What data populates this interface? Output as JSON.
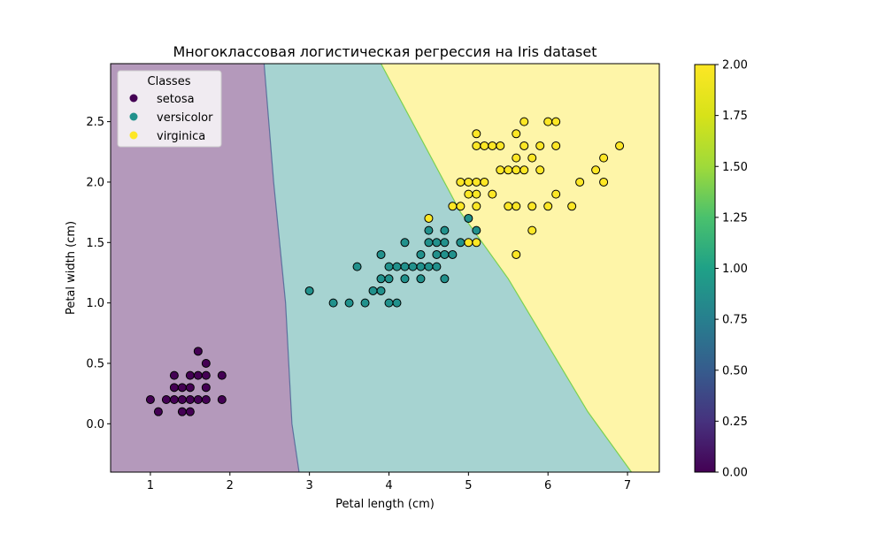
{
  "chart_data": {
    "type": "scatter",
    "title": "Многоклассовая логистическая регрессия на Iris dataset",
    "xlabel": "Petal length (cm)",
    "ylabel": "Petal width (cm)",
    "xlim": [
      0.5,
      7.4
    ],
    "ylim": [
      -0.4,
      2.98
    ],
    "x_ticks": [
      "1",
      "2",
      "3",
      "4",
      "5",
      "6",
      "7"
    ],
    "y_ticks": [
      "0.0",
      "0.5",
      "1.0",
      "1.5",
      "2.0",
      "2.5"
    ],
    "grid": false,
    "legend": {
      "title": "Classes",
      "placement": "top-left",
      "entries": [
        "setosa",
        "versicolor",
        "virginica"
      ]
    },
    "colorbar": {
      "range": [
        0,
        2
      ],
      "ticks": [
        "0.00",
        "0.25",
        "0.50",
        "0.75",
        "1.00",
        "1.25",
        "1.50",
        "1.75",
        "2.00"
      ]
    },
    "colors": {
      "setosa": "#440154",
      "versicolor": "#21918c",
      "virginica": "#fde725"
    },
    "decision_regions": [
      {
        "class": "setosa",
        "color": "#440154"
      },
      {
        "class": "versicolor",
        "color": "#21918c"
      },
      {
        "class": "virginica",
        "color": "#fde725"
      }
    ],
    "boundaries": {
      "setosa_versicolor": [
        [
          2.43,
          2.98
        ],
        [
          2.55,
          2.0
        ],
        [
          2.7,
          1.0
        ],
        [
          2.78,
          0.0
        ],
        [
          2.87,
          -0.4
        ]
      ],
      "versicolor_virginica": [
        [
          3.9,
          2.98
        ],
        [
          4.9,
          1.75
        ],
        [
          5.5,
          1.2
        ],
        [
          6.5,
          0.1
        ],
        [
          7.05,
          -0.4
        ]
      ]
    },
    "series": [
      {
        "name": "setosa",
        "points": [
          [
            1.0,
            0.2
          ],
          [
            1.1,
            0.1
          ],
          [
            1.2,
            0.2
          ],
          [
            1.3,
            0.2
          ],
          [
            1.3,
            0.3
          ],
          [
            1.3,
            0.4
          ],
          [
            1.4,
            0.1
          ],
          [
            1.4,
            0.2
          ],
          [
            1.4,
            0.3
          ],
          [
            1.5,
            0.1
          ],
          [
            1.5,
            0.2
          ],
          [
            1.5,
            0.3
          ],
          [
            1.5,
            0.4
          ],
          [
            1.6,
            0.2
          ],
          [
            1.6,
            0.4
          ],
          [
            1.6,
            0.6
          ],
          [
            1.7,
            0.2
          ],
          [
            1.7,
            0.3
          ],
          [
            1.7,
            0.4
          ],
          [
            1.7,
            0.5
          ],
          [
            1.9,
            0.2
          ],
          [
            1.9,
            0.4
          ]
        ]
      },
      {
        "name": "versicolor",
        "points": [
          [
            3.0,
            1.1
          ],
          [
            3.3,
            1.0
          ],
          [
            3.5,
            1.0
          ],
          [
            3.6,
            1.3
          ],
          [
            3.7,
            1.0
          ],
          [
            3.8,
            1.1
          ],
          [
            3.9,
            1.1
          ],
          [
            3.9,
            1.2
          ],
          [
            3.9,
            1.4
          ],
          [
            4.0,
            1.0
          ],
          [
            4.0,
            1.2
          ],
          [
            4.0,
            1.3
          ],
          [
            4.1,
            1.0
          ],
          [
            4.1,
            1.3
          ],
          [
            4.2,
            1.2
          ],
          [
            4.2,
            1.3
          ],
          [
            4.2,
            1.5
          ],
          [
            4.3,
            1.3
          ],
          [
            4.4,
            1.2
          ],
          [
            4.4,
            1.3
          ],
          [
            4.4,
            1.4
          ],
          [
            4.5,
            1.3
          ],
          [
            4.5,
            1.5
          ],
          [
            4.5,
            1.6
          ],
          [
            4.6,
            1.3
          ],
          [
            4.6,
            1.4
          ],
          [
            4.6,
            1.5
          ],
          [
            4.7,
            1.2
          ],
          [
            4.7,
            1.4
          ],
          [
            4.7,
            1.5
          ],
          [
            4.7,
            1.6
          ],
          [
            4.8,
            1.4
          ],
          [
            4.9,
            1.5
          ],
          [
            5.0,
            1.7
          ],
          [
            5.1,
            1.6
          ]
        ]
      },
      {
        "name": "virginica",
        "points": [
          [
            4.5,
            1.7
          ],
          [
            4.8,
            1.8
          ],
          [
            4.9,
            1.8
          ],
          [
            4.9,
            2.0
          ],
          [
            5.0,
            1.5
          ],
          [
            5.0,
            1.9
          ],
          [
            5.0,
            2.0
          ],
          [
            5.1,
            1.5
          ],
          [
            5.1,
            1.8
          ],
          [
            5.1,
            1.9
          ],
          [
            5.1,
            2.0
          ],
          [
            5.1,
            2.3
          ],
          [
            5.1,
            2.4
          ],
          [
            5.2,
            2.0
          ],
          [
            5.2,
            2.3
          ],
          [
            5.3,
            1.9
          ],
          [
            5.3,
            2.3
          ],
          [
            5.4,
            2.1
          ],
          [
            5.4,
            2.3
          ],
          [
            5.5,
            1.8
          ],
          [
            5.5,
            2.1
          ],
          [
            5.6,
            1.4
          ],
          [
            5.6,
            1.8
          ],
          [
            5.6,
            2.1
          ],
          [
            5.6,
            2.2
          ],
          [
            5.6,
            2.4
          ],
          [
            5.7,
            2.1
          ],
          [
            5.7,
            2.3
          ],
          [
            5.7,
            2.5
          ],
          [
            5.8,
            1.6
          ],
          [
            5.8,
            1.8
          ],
          [
            5.8,
            2.2
          ],
          [
            5.9,
            2.1
          ],
          [
            5.9,
            2.3
          ],
          [
            6.0,
            1.8
          ],
          [
            6.0,
            2.5
          ],
          [
            6.1,
            1.9
          ],
          [
            6.1,
            2.3
          ],
          [
            6.1,
            2.5
          ],
          [
            6.3,
            1.8
          ],
          [
            6.4,
            2.0
          ],
          [
            6.6,
            2.1
          ],
          [
            6.7,
            2.0
          ],
          [
            6.7,
            2.2
          ],
          [
            6.9,
            2.3
          ]
        ]
      }
    ]
  }
}
